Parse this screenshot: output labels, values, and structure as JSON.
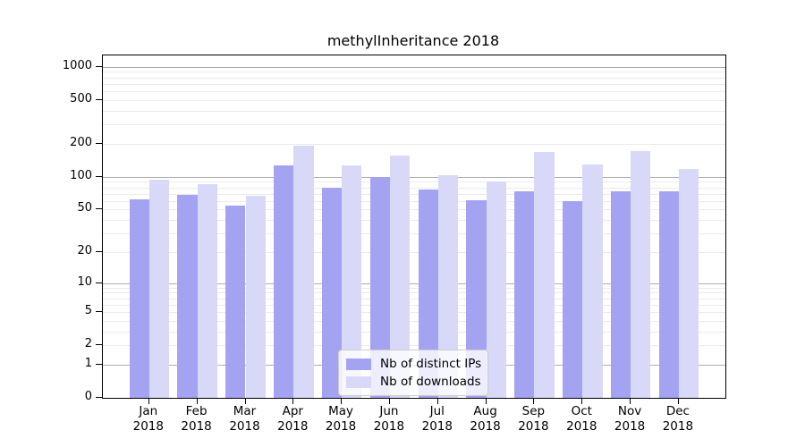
{
  "title": "methylInheritance 2018",
  "chart_data": {
    "type": "bar",
    "title": "methylInheritance 2018",
    "categories": [
      "Jan",
      "Feb",
      "Mar",
      "Apr",
      "May",
      "Jun",
      "Jul",
      "Aug",
      "Sep",
      "Oct",
      "Nov",
      "Dec"
    ],
    "x_sublabel": "2018",
    "series": [
      {
        "name": "Nb of distinct IPs",
        "color": "#a3a3f2",
        "values": [
          62,
          68,
          54,
          128,
          80,
          99,
          77,
          61,
          73,
          60,
          74,
          74
        ]
      },
      {
        "name": "Nb of downloads",
        "color": "#d8d8f8",
        "values": [
          94,
          85,
          67,
          193,
          128,
          156,
          104,
          91,
          167,
          130,
          170,
          118
        ]
      }
    ],
    "xlabel": "",
    "ylabel": "",
    "y_axis": {
      "scale": "log1p",
      "tick_values": [
        0,
        1,
        2,
        5,
        10,
        20,
        50,
        100,
        200,
        500,
        1000
      ],
      "major_gridlines": [
        1,
        10,
        100,
        1000
      ],
      "ylim": [
        0,
        1240
      ]
    },
    "grid": "on",
    "legend_position": "lower center",
    "background_color": "#ffffff",
    "text_color": "#000000",
    "gridline_minor_color": "#ebebeb",
    "gridline_major_color": "#adadad"
  }
}
